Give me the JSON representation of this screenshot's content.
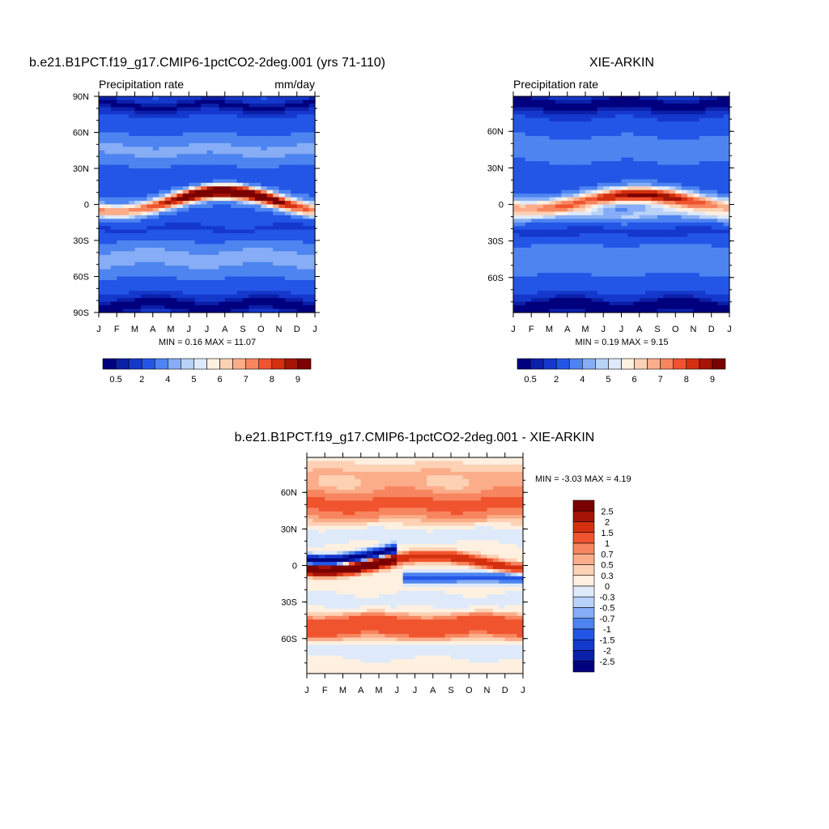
{
  "chart_data": [
    {
      "type": "heatmap",
      "id": "model",
      "title": "b.e21.B1PCT.f19_g17.CMIP6-1pctCO2-2deg.001 (yrs 71-110)",
      "left_label": "Precipitation rate",
      "right_label": "mm/day",
      "x_ticks": [
        "J",
        "F",
        "M",
        "A",
        "M",
        "J",
        "J",
        "A",
        "S",
        "O",
        "N",
        "D",
        "J"
      ],
      "y_ticks": [
        "90N",
        "60N",
        "30N",
        "0",
        "30S",
        "60S",
        "90S"
      ],
      "y_tick_values": [
        90,
        60,
        30,
        0,
        -30,
        -60,
        -90
      ],
      "ylim": [
        -90,
        90
      ],
      "minmax": "MIN =   0.16 MAX =  11.07",
      "colorbar": {
        "orientation": "horizontal",
        "labels": [
          "0.5",
          "2",
          "4",
          "5",
          "6",
          "7",
          "8",
          "9"
        ],
        "colors": [
          "#00007f",
          "#0b1fa8",
          "#1538cc",
          "#2356e6",
          "#4d84f0",
          "#86adf5",
          "#b8d2f8",
          "#deeafa",
          "#fff0e0",
          "#fdd1b4",
          "#fbad8a",
          "#f7855f",
          "#f0542e",
          "#d4300f",
          "#a51405",
          "#7a0000"
        ]
      },
      "field": {
        "base": 2.8,
        "itcz": {
          "peak": 11.07,
          "amplitude_lat": 11,
          "min_lat": -6,
          "width": 4.5
        },
        "features": [
          {
            "lat": 82,
            "amp": -2.4,
            "width": 6
          },
          {
            "lat": -84,
            "amp": -2.6,
            "width": 7
          },
          {
            "lat": 45,
            "amp": 1.4,
            "width": 7
          },
          {
            "lat": -45,
            "amp": 1.6,
            "width": 8
          },
          {
            "lat": 20,
            "amp": -0.8,
            "width": 5
          },
          {
            "lat": -20,
            "amp": -0.9,
            "width": 5
          }
        ]
      }
    },
    {
      "type": "heatmap",
      "id": "obs",
      "title": "XIE-ARKIN",
      "left_label": "Precipitation rate",
      "x_ticks": [
        "J",
        "F",
        "M",
        "A",
        "M",
        "J",
        "J",
        "A",
        "S",
        "O",
        "N",
        "D",
        "J"
      ],
      "y_ticks": [
        "60N",
        "30N",
        "0",
        "30S",
        "60S"
      ],
      "y_tick_values": [
        60,
        30,
        0,
        -30,
        -60
      ],
      "ylim": [
        -88.75,
        88.75
      ],
      "minmax": "MIN =   0.19 MAX =   9.15",
      "colorbar": {
        "orientation": "horizontal",
        "labels": [
          "0.5",
          "2",
          "4",
          "5",
          "6",
          "7",
          "8",
          "9"
        ],
        "colors": [
          "#00007f",
          "#0b1fa8",
          "#1538cc",
          "#2356e6",
          "#4d84f0",
          "#86adf5",
          "#b8d2f8",
          "#deeafa",
          "#fff0e0",
          "#fdd1b4",
          "#fbad8a",
          "#f7855f",
          "#f0542e",
          "#d4300f",
          "#a51405",
          "#7a0000"
        ]
      },
      "field": {
        "base": 2.6,
        "itcz": {
          "peak": 9.15,
          "amplitude_lat": 8,
          "min_lat": -2,
          "width": 5
        },
        "features": [
          {
            "lat": 82,
            "amp": -2.4,
            "width": 7
          },
          {
            "lat": -84,
            "amp": -2.6,
            "width": 7
          },
          {
            "lat": 45,
            "amp": 1.2,
            "width": 7
          },
          {
            "lat": -45,
            "amp": 1.4,
            "width": 8
          },
          {
            "lat": -8,
            "amp": 2.0,
            "width": 5
          },
          {
            "lat": -22,
            "amp": -0.9,
            "width": 5
          }
        ]
      }
    },
    {
      "type": "heatmap",
      "id": "diff",
      "title": "b.e21.B1PCT.f19_g17.CMIP6-1pctCO2-2deg.001 - XIE-ARKIN",
      "x_ticks": [
        "J",
        "F",
        "M",
        "A",
        "M",
        "J",
        "J",
        "A",
        "S",
        "O",
        "N",
        "D",
        "J"
      ],
      "y_ticks": [
        "60N",
        "30N",
        "0",
        "30S",
        "60S"
      ],
      "y_tick_values": [
        60,
        30,
        0,
        -30,
        -60
      ],
      "ylim": [
        -88.75,
        88.75
      ],
      "minmax": "MIN =  -3.03 MAX =   4.19",
      "colorbar": {
        "orientation": "vertical",
        "labels": [
          "2.5",
          "2",
          "1.5",
          "1",
          "0.7",
          "0.5",
          "0.3",
          "0",
          "-0.3",
          "-0.5",
          "-0.7",
          "-1",
          "-1.5",
          "-2",
          "-2.5"
        ],
        "colors": [
          "#7a0000",
          "#a51405",
          "#d4300f",
          "#f0542e",
          "#f7855f",
          "#fbad8a",
          "#fdd1b4",
          "#fff0e0",
          "#deeafa",
          "#b8d2f8",
          "#86adf5",
          "#4d84f0",
          "#2356e6",
          "#1538cc",
          "#0b1fa8",
          "#00007f"
        ]
      },
      "field": {
        "base": 0.2,
        "features": [
          {
            "lat": 50,
            "amp": 0.9,
            "width": 10
          },
          {
            "lat": -50,
            "amp": 1.3,
            "width": 7
          },
          {
            "lat": 75,
            "amp": 0.3,
            "width": 6
          },
          {
            "lat": 25,
            "amp": -0.5,
            "width": 5
          },
          {
            "lat": -30,
            "amp": -0.4,
            "width": 6
          },
          {
            "lat": -70,
            "amp": -0.5,
            "width": 5
          }
        ],
        "dipole": {
          "amp": 4.0,
          "width": 3
        }
      }
    }
  ]
}
